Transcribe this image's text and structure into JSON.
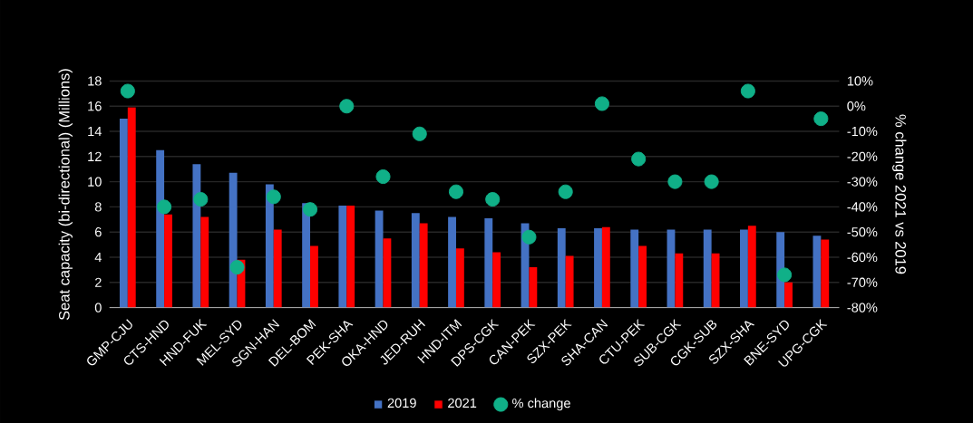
{
  "chart_data": {
    "type": "bar",
    "ylabel": "Seat capacity (bi-directional) (Millions)",
    "y2label": "% change 2021 vs 2019",
    "categories": [
      "GMP-CJU",
      "CTS-HND",
      "HND-FUK",
      "MEL-SYD",
      "SGN-HAN",
      "DEL-BOM",
      "PEK-SHA",
      "OKA-HND",
      "JED-RUH",
      "HND-ITM",
      "DPS-CGK",
      "CAN-PEK",
      "SZX-PEK",
      "SHA-CAN",
      "CTU-PEK",
      "SUB-CGK",
      "CGK-SUB",
      "SZX-SHA",
      "BNE-SYD",
      "UPG-CGK"
    ],
    "series": [
      {
        "name": "2019",
        "color": "#4472c4",
        "values": [
          15.0,
          12.5,
          11.4,
          10.7,
          9.8,
          8.3,
          8.1,
          7.7,
          7.5,
          7.2,
          7.1,
          6.7,
          6.3,
          6.3,
          6.2,
          6.2,
          6.2,
          6.2,
          6.0,
          5.7
        ]
      },
      {
        "name": "2021",
        "color": "#ff0000",
        "values": [
          15.9,
          7.4,
          7.2,
          3.8,
          6.2,
          4.9,
          8.1,
          5.5,
          6.7,
          4.7,
          4.4,
          3.2,
          4.1,
          6.4,
          4.9,
          4.3,
          4.3,
          6.5,
          2.0,
          5.4
        ]
      },
      {
        "name": "% change",
        "type": "scatter",
        "axis": "y2",
        "marker": "circle",
        "color": "#10b088",
        "values": [
          6,
          -40,
          -37,
          -64,
          -36,
          -41,
          0,
          -28,
          -11,
          -34,
          -37,
          -52,
          -34,
          1,
          -21,
          -30,
          -30,
          6,
          -67,
          -5
        ]
      }
    ],
    "ylim": [
      0,
      18
    ],
    "yticks": [
      0,
      2,
      4,
      6,
      8,
      10,
      12,
      14,
      16,
      18
    ],
    "y2lim": [
      -80,
      10
    ],
    "y2ticks": [
      {
        "value": -80,
        "label": "-80%"
      },
      {
        "value": -70,
        "label": "-70%"
      },
      {
        "value": -60,
        "label": "-60%"
      },
      {
        "value": -50,
        "label": "-50%"
      },
      {
        "value": -40,
        "label": "-40%"
      },
      {
        "value": -30,
        "label": "-30%"
      },
      {
        "value": -20,
        "label": "-20%"
      },
      {
        "value": -10,
        "label": "-10%"
      },
      {
        "value": 0,
        "label": "0%"
      },
      {
        "value": 10,
        "label": "10%"
      }
    ],
    "grid": "y",
    "legend": "bottom"
  }
}
